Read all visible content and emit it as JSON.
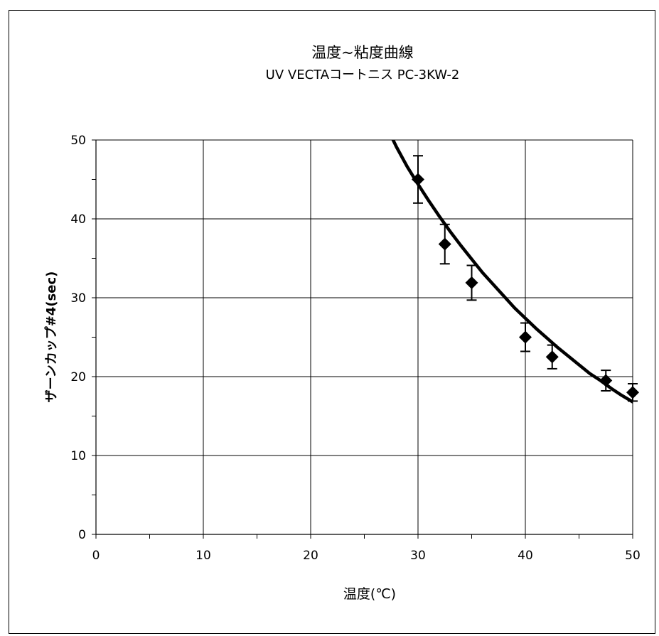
{
  "chart_data": {
    "type": "scatter",
    "title": "温度~粘度曲線",
    "subtitle": "UV VECTAコートニス PC-3KW-2",
    "xlabel": "温度(℃)",
    "ylabel": "ザーンカップ#4(sec)",
    "xlim": [
      0,
      50
    ],
    "ylim": [
      0,
      50
    ],
    "x_ticks": [
      0,
      10,
      20,
      30,
      40,
      50
    ],
    "y_ticks": [
      0,
      10,
      20,
      30,
      40,
      50
    ],
    "x_tick_labels": [
      "0",
      "10",
      "20",
      "30",
      "40",
      "50"
    ],
    "y_tick_labels": [
      "0",
      "10",
      "20",
      "30",
      "40",
      "50"
    ],
    "grid": true,
    "marker": "diamond",
    "series": [
      {
        "x": [
          30,
          32.5,
          35,
          40,
          42.5,
          47.5,
          50
        ],
        "y": [
          45,
          36.8,
          31.9,
          25,
          22.5,
          19.5,
          18
        ],
        "error": [
          3,
          2.5,
          2.2,
          1.8,
          1.5,
          1.3,
          1.1
        ]
      }
    ],
    "trend_curve": {
      "x": [
        27.5,
        28,
        29,
        30,
        31,
        32,
        33,
        34,
        35,
        36,
        37,
        38,
        39,
        40,
        41,
        42,
        43,
        44,
        45,
        46,
        47,
        48,
        49,
        50
      ],
      "y": [
        50.5,
        49.1,
        46.6,
        44.4,
        42.3,
        40.3,
        38.4,
        36.6,
        34.9,
        33.2,
        31.7,
        30.2,
        28.7,
        27.4,
        26.1,
        24.9,
        23.7,
        22.6,
        21.5,
        20.4,
        19.5,
        18.5,
        17.6,
        16.8
      ]
    }
  }
}
